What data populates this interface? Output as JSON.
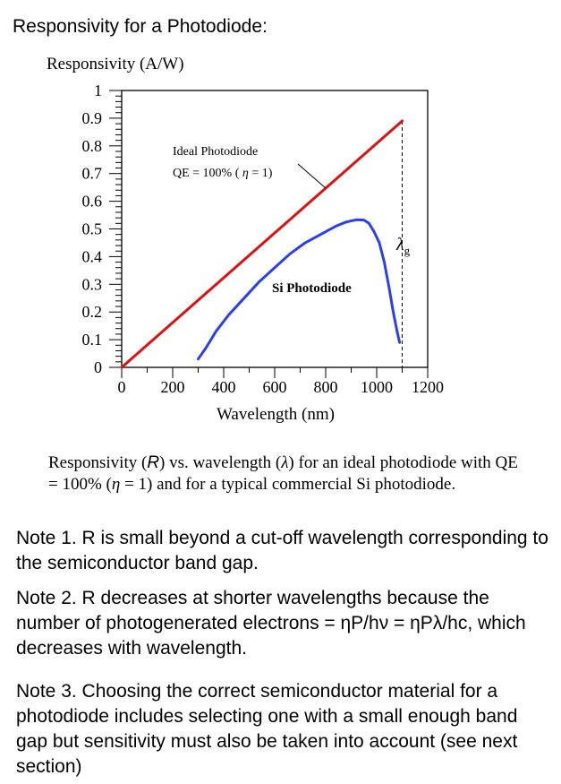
{
  "page": {
    "title": "Responsivity for a Photodiode:"
  },
  "caption": {
    "part1": "Responsivity (",
    "r_symbol": "R",
    "part2": ") vs. wavelength (",
    "lambda_symbol": "λ",
    "part3": ") for an ideal photodiode with QE = 100% (",
    "eta_symbol": "η",
    "part4": " = 1) and for a typical commercial Si photodiode."
  },
  "notes": [
    "Note 1. R is small beyond a cut-off wavelength corresponding to the semiconductor band gap.",
    "Note 2. R decreases at shorter wavelengths because the number of photogenerated electrons = ηP/hν = ηPλ/hc, which decreases with wavelength.",
    "Note 3.  Choosing the correct semiconductor material for a photodiode includes selecting one with a small enough band gap but sensitivity must also be taken into account (see next section)"
  ],
  "chart_data": {
    "type": "line",
    "ylabel": "Responsivity (A/W)",
    "xlabel": "Wavelength (nm)",
    "xlim": [
      0,
      1200
    ],
    "ylim": [
      0,
      1
    ],
    "x_ticks": [
      "0",
      "200",
      "400",
      "600",
      "800",
      "1000",
      "1200"
    ],
    "y_ticks": [
      "0",
      "0.1",
      "0.2",
      "0.3",
      "0.4",
      "0.5",
      "0.6",
      "0.7",
      "0.8",
      "0.9",
      "1"
    ],
    "grid": false,
    "series": [
      {
        "name": "Ideal Photodiode",
        "color": "#e01010",
        "x": [
          0,
          1100
        ],
        "y": [
          0,
          0.89
        ]
      },
      {
        "name": "Si Photodiode",
        "color": "#2a3ff0",
        "x": [
          300,
          330,
          370,
          420,
          480,
          540,
          600,
          660,
          720,
          780,
          840,
          880,
          920,
          950,
          970,
          990,
          1010,
          1030,
          1050,
          1065,
          1080,
          1090
        ],
        "y": [
          0.03,
          0.07,
          0.13,
          0.19,
          0.25,
          0.31,
          0.36,
          0.41,
          0.45,
          0.48,
          0.51,
          0.525,
          0.533,
          0.532,
          0.52,
          0.49,
          0.45,
          0.38,
          0.28,
          0.2,
          0.13,
          0.09
        ]
      }
    ],
    "annotations": {
      "ideal_line1": "Ideal Photodiode",
      "ideal_line2_prefix": "QE = 100% ( ",
      "ideal_eta": "η",
      "ideal_line2_suffix": " = 1)",
      "si_label": "Si Photodiode",
      "cutoff_symbol": "λ",
      "cutoff_subscript": "g",
      "cutoff_x": 1100
    }
  }
}
